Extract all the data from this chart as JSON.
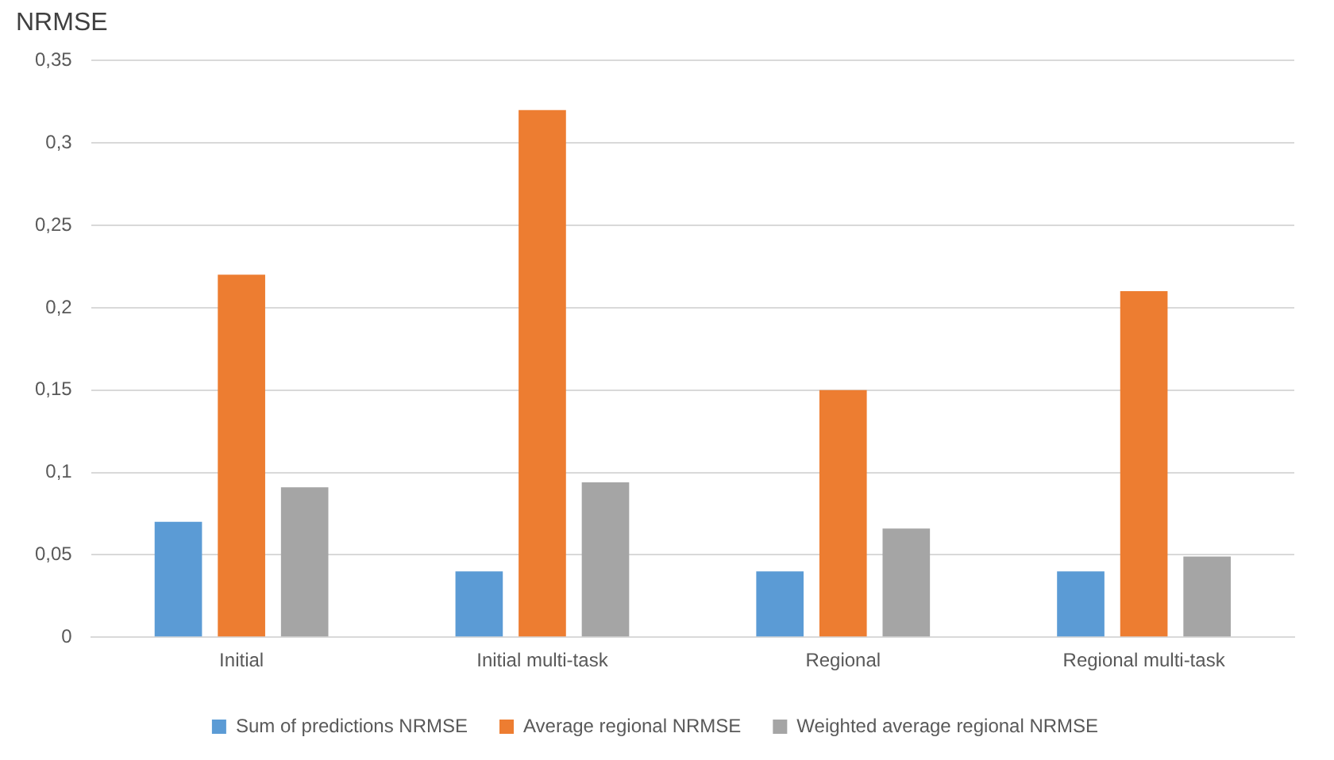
{
  "chart_data": {
    "type": "bar",
    "title": "NRMSE",
    "categories": [
      "Initial",
      "Initial multi-task",
      "Regional",
      "Regional multi-task"
    ],
    "series": [
      {
        "name": "Sum of predictions NRMSE",
        "color": "#5b9bd5",
        "values": [
          0.07,
          0.04,
          0.04,
          0.04
        ]
      },
      {
        "name": "Average regional NRMSE",
        "color": "#ed7d31",
        "values": [
          0.22,
          0.32,
          0.15,
          0.21
        ]
      },
      {
        "name": "Weighted average regional NRMSE",
        "color": "#a5a5a5",
        "values": [
          0.091,
          0.094,
          0.066,
          0.049
        ]
      }
    ],
    "ylim": [
      0,
      0.35
    ],
    "yticks": [
      0,
      {
        "value": 0.05,
        "label": "0,05"
      },
      {
        "value": 0.1,
        "label": "0,1"
      },
      {
        "value": 0.15,
        "label": "0,15"
      },
      {
        "value": 0.2,
        "label": "0,2"
      },
      {
        "value": 0.25,
        "label": "0,25"
      },
      {
        "value": 0.3,
        "label": "0,3"
      },
      {
        "value": 0.35,
        "label": "0,35"
      }
    ],
    "grid": "y",
    "legend": "bottom"
  }
}
